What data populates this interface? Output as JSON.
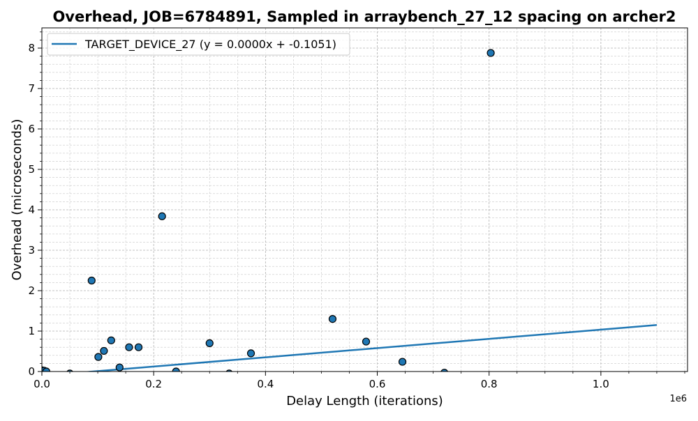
{
  "chart_data": {
    "type": "scatter",
    "title": "Overhead, JOB=6784891, Sampled in arraybench_27_12 spacing on archer2",
    "xlabel": "Delay Length (iterations)",
    "ylabel": "Overhead (microseconds)",
    "x_offset_label": "1e6",
    "xlim": [
      0,
      1.155
    ],
    "ylim": [
      0,
      8.5
    ],
    "x_ticks": [
      0.0,
      0.2,
      0.4,
      0.6,
      0.8,
      1.0
    ],
    "x_tick_labels": [
      "0.0",
      "0.2",
      "0.4",
      "0.6",
      "0.8",
      "1.0"
    ],
    "y_ticks": [
      0,
      1,
      2,
      3,
      4,
      5,
      6,
      7,
      8
    ],
    "y_tick_labels": [
      "0",
      "1",
      "2",
      "3",
      "4",
      "5",
      "6",
      "7",
      "8"
    ],
    "grid": true,
    "legend_placement": "upper-left",
    "series": [
      {
        "name": "TARGET_DEVICE_27 (y = 0.0000x + -0.1051)",
        "kind": "line",
        "color": "#1f77b4",
        "x": [
          0,
          1.1
        ],
        "y": [
          -0.1051,
          1.15
        ]
      },
      {
        "kind": "scatter",
        "color": "#1f77b4",
        "edge_color": "#000000",
        "x": [
          0.0,
          0.004,
          0.008,
          0.05,
          0.089,
          0.101,
          0.111,
          0.124,
          0.139,
          0.156,
          0.173,
          0.215,
          0.24,
          0.3,
          0.335,
          0.374,
          0.52,
          0.58,
          0.645,
          0.72,
          0.803
        ],
        "y": [
          0.03,
          0.02,
          0.0,
          -0.05,
          2.25,
          0.36,
          0.51,
          0.77,
          0.1,
          0.6,
          0.6,
          3.84,
          0.0,
          0.7,
          -0.05,
          0.45,
          1.3,
          0.74,
          0.24,
          -0.03,
          7.88
        ]
      }
    ]
  }
}
